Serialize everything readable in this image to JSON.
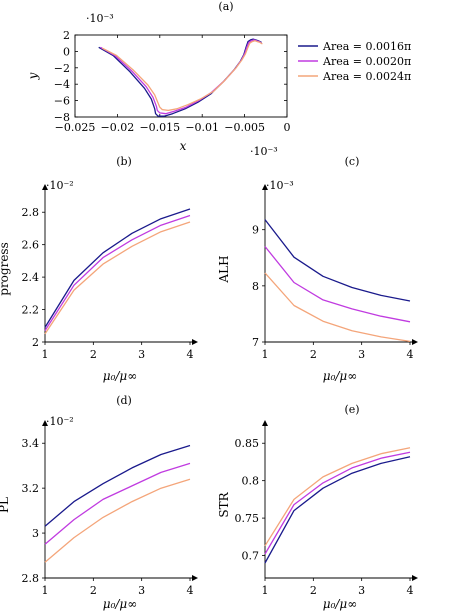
{
  "series_colors": [
    "#1a1a8c",
    "#c03be0",
    "#f4a57a"
  ],
  "legend": [
    "Area = 0.0016π",
    "Area = 0.0020π",
    "Area = 0.0024π"
  ],
  "chart_data": [
    {
      "type": "line",
      "panel": "(a)",
      "xlabel": "x",
      "ylabel": "y",
      "x_multiplier": "·10⁻³",
      "y_multiplier": "·10⁻³",
      "xlim": [
        -0.025,
        0
      ],
      "ylim": [
        -0.008,
        0.002
      ],
      "xticks": [
        "−0.025",
        "−0.02",
        "−0.015",
        "−0.01",
        "−0.005",
        "0"
      ],
      "yticks": [
        "2",
        "0",
        "−2",
        "−4",
        "−6",
        "−8"
      ],
      "legend_position": "right",
      "series": [
        {
          "name": "Area = 0.0016π",
          "x": [
            -0.0222,
            -0.0205,
            -0.0185,
            -0.0168,
            -0.016,
            -0.0156,
            -0.0155,
            -0.0152,
            -0.0145,
            -0.0135,
            -0.012,
            -0.0105,
            -0.009,
            -0.0075,
            -0.0062,
            -0.0055,
            -0.0051,
            -0.0048,
            -0.0046,
            -0.0043,
            -0.004,
            -0.0037,
            -0.0034,
            -0.003
          ],
          "y": [
            0.0005,
            -0.0005,
            -0.0025,
            -0.0045,
            -0.0058,
            -0.007,
            -0.0076,
            -0.0079,
            -0.0079,
            -0.0076,
            -0.007,
            -0.0062,
            -0.0052,
            -0.0037,
            -0.0022,
            -0.0012,
            -0.0004,
            0.0006,
            0.0012,
            0.0014,
            0.0015,
            0.0014,
            0.0013,
            0.0011
          ]
        },
        {
          "name": "Area = 0.0020π",
          "x": [
            -0.022,
            -0.0203,
            -0.0183,
            -0.0166,
            -0.0158,
            -0.0154,
            -0.0153,
            -0.015,
            -0.0143,
            -0.0133,
            -0.0119,
            -0.0104,
            -0.0089,
            -0.0074,
            -0.0061,
            -0.0054,
            -0.005,
            -0.0047,
            -0.0045,
            -0.0042,
            -0.0039,
            -0.0036,
            -0.0033,
            -0.003
          ],
          "y": [
            0.0005,
            -0.0005,
            -0.0024,
            -0.0043,
            -0.0056,
            -0.0067,
            -0.0072,
            -0.0075,
            -0.0076,
            -0.0073,
            -0.0068,
            -0.006,
            -0.005,
            -0.0036,
            -0.0021,
            -0.0011,
            -0.0003,
            0.0006,
            0.0011,
            0.0013,
            0.0014,
            0.0013,
            0.0012,
            0.001
          ]
        },
        {
          "name": "Area = 0.0024π",
          "x": [
            -0.0218,
            -0.0201,
            -0.0181,
            -0.0164,
            -0.0156,
            -0.0152,
            -0.015,
            -0.0147,
            -0.014,
            -0.013,
            -0.0117,
            -0.0102,
            -0.0087,
            -0.0073,
            -0.006,
            -0.0053,
            -0.0049,
            -0.0046,
            -0.0044,
            -0.0041,
            -0.0038,
            -0.0035,
            -0.0032,
            -0.0029
          ],
          "y": [
            0.0004,
            -0.0005,
            -0.0023,
            -0.0041,
            -0.0053,
            -0.0063,
            -0.0068,
            -0.0071,
            -0.0072,
            -0.007,
            -0.0065,
            -0.0058,
            -0.0049,
            -0.0035,
            -0.002,
            -0.001,
            -0.0003,
            0.0005,
            0.001,
            0.0012,
            0.0013,
            0.0012,
            0.0011,
            0.0009
          ]
        }
      ]
    },
    {
      "type": "line",
      "panel": "(b)",
      "xlabel": "μ₀/μ∞",
      "ylabel": "progress",
      "y_multiplier": "·10⁻²",
      "xlim": [
        1,
        4
      ],
      "ylim": [
        0.02,
        0.029
      ],
      "xticks": [
        "1",
        "2",
        "3",
        "4"
      ],
      "yticks": [
        "2.8",
        "2.6",
        "2.4",
        "2.2",
        "2"
      ],
      "x": [
        1,
        1.6,
        2.2,
        2.8,
        3.4,
        4
      ],
      "series": [
        {
          "name": "Area = 0.0016π",
          "values": [
            0.0209,
            0.0238,
            0.0255,
            0.0267,
            0.0276,
            0.0282
          ]
        },
        {
          "name": "Area = 0.0020π",
          "values": [
            0.0207,
            0.0235,
            0.0252,
            0.0263,
            0.0272,
            0.0278
          ]
        },
        {
          "name": "Area = 0.0024π",
          "values": [
            0.0205,
            0.0232,
            0.0248,
            0.0259,
            0.0268,
            0.0274
          ]
        }
      ]
    },
    {
      "type": "line",
      "panel": "(c)",
      "xlabel": "μ₀/μ∞",
      "ylabel": "ALH",
      "y_multiplier": "·10⁻³",
      "xlim": [
        1,
        4
      ],
      "ylim": [
        0.007,
        0.0096
      ],
      "xticks": [
        "1",
        "2",
        "3",
        "4"
      ],
      "yticks": [
        "9",
        "8",
        "7"
      ],
      "x": [
        1,
        1.6,
        2.2,
        2.8,
        3.4,
        4
      ],
      "series": [
        {
          "name": "Area = 0.0016π",
          "values": [
            0.00918,
            0.00851,
            0.00817,
            0.00797,
            0.00783,
            0.00773
          ]
        },
        {
          "name": "Area = 0.0020π",
          "values": [
            0.0087,
            0.00806,
            0.00775,
            0.00759,
            0.00746,
            0.00736
          ]
        },
        {
          "name": "Area = 0.0024π",
          "values": [
            0.00823,
            0.00765,
            0.00737,
            0.0072,
            0.00709,
            0.00701
          ]
        }
      ]
    },
    {
      "type": "line",
      "panel": "(d)",
      "xlabel": "μ₀/μ∞",
      "ylabel": "PL",
      "y_multiplier": "·10⁻²",
      "xlim": [
        1,
        4
      ],
      "ylim": [
        0.028,
        0.0345
      ],
      "xticks": [
        "1",
        "2",
        "3",
        "4"
      ],
      "yticks": [
        "3.4",
        "3.2",
        "3",
        "2.8"
      ],
      "x": [
        1,
        1.6,
        2.2,
        2.8,
        3.4,
        4
      ],
      "series": [
        {
          "name": "Area = 0.0016π",
          "values": [
            0.0303,
            0.0314,
            0.0322,
            0.0329,
            0.0335,
            0.0339
          ]
        },
        {
          "name": "Area = 0.0020π",
          "values": [
            0.0295,
            0.0306,
            0.0315,
            0.0321,
            0.0327,
            0.0331
          ]
        },
        {
          "name": "Area = 0.0024π",
          "values": [
            0.0287,
            0.0298,
            0.0307,
            0.0314,
            0.032,
            0.0324
          ]
        }
      ]
    },
    {
      "type": "line",
      "panel": "(e)",
      "xlabel": "μ₀/μ∞",
      "ylabel": "STR",
      "xlim": [
        1,
        4
      ],
      "ylim": [
        0.67,
        0.865
      ],
      "xticks": [
        "1",
        "2",
        "3",
        "4"
      ],
      "yticks": [
        "0.85",
        "0.8",
        "0.75",
        "0.7"
      ],
      "x": [
        1,
        1.6,
        2.2,
        2.8,
        3.4,
        4
      ],
      "series": [
        {
          "name": "Area = 0.0016π",
          "values": [
            0.69,
            0.76,
            0.79,
            0.81,
            0.823,
            0.832
          ]
        },
        {
          "name": "Area = 0.0020π",
          "values": [
            0.702,
            0.768,
            0.797,
            0.817,
            0.83,
            0.838
          ]
        },
        {
          "name": "Area = 0.0024π",
          "values": [
            0.713,
            0.775,
            0.805,
            0.823,
            0.836,
            0.844
          ]
        }
      ]
    }
  ]
}
